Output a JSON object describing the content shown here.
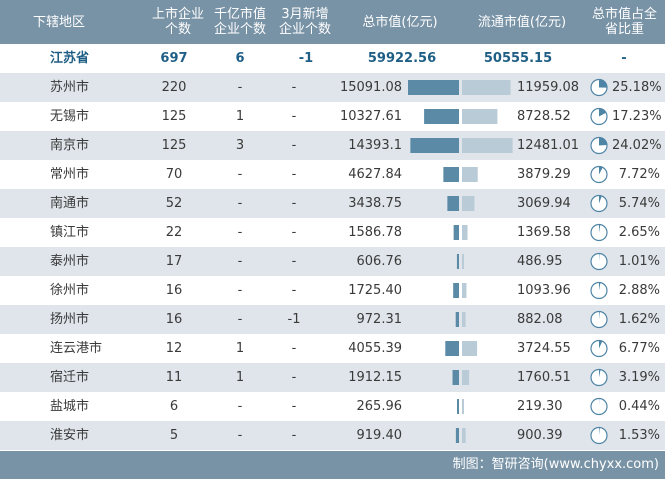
{
  "chart_data": {
    "type": "table",
    "columns": [
      {
        "key": "region",
        "label": "下辖地区"
      },
      {
        "key": "listed",
        "label": "上市企业\n个数"
      },
      {
        "key": "over100b",
        "label": "千亿市值\n企业个数"
      },
      {
        "key": "new_march",
        "label": "3月新增\n企业个数"
      },
      {
        "key": "total_cap",
        "label": "总市值(亿元)"
      },
      {
        "key": "float_cap",
        "label": "流通市值(亿元)"
      },
      {
        "key": "share",
        "label": "总市值占全\n省比重"
      }
    ],
    "summary": {
      "region": "江苏省",
      "listed": "697",
      "over100b": "6",
      "new_march": "-1",
      "total_cap": "59922.56",
      "float_cap": "50555.15",
      "share": "-"
    },
    "rows": [
      {
        "region": "苏州市",
        "listed": "220",
        "over100b": "-",
        "new_march": "-",
        "total_cap": "15091.08",
        "float_cap": "11959.08",
        "share": "25.18%",
        "total_val": 15091.08,
        "float_val": 11959.08,
        "share_val": 25.18
      },
      {
        "region": "无锡市",
        "listed": "125",
        "over100b": "1",
        "new_march": "-",
        "total_cap": "10327.61",
        "float_cap": "8728.52",
        "share": "17.23%",
        "total_val": 10327.61,
        "float_val": 8728.52,
        "share_val": 17.23
      },
      {
        "region": "南京市",
        "listed": "125",
        "over100b": "3",
        "new_march": "-",
        "total_cap": "14393.1",
        "float_cap": "12481.01",
        "share": "24.02%",
        "total_val": 14393.1,
        "float_val": 12481.01,
        "share_val": 24.02
      },
      {
        "region": "常州市",
        "listed": "70",
        "over100b": "-",
        "new_march": "-",
        "total_cap": "4627.84",
        "float_cap": "3879.29",
        "share": "7.72%",
        "total_val": 4627.84,
        "float_val": 3879.29,
        "share_val": 7.72
      },
      {
        "region": "南通市",
        "listed": "52",
        "over100b": "-",
        "new_march": "-",
        "total_cap": "3438.75",
        "float_cap": "3069.94",
        "share": "5.74%",
        "total_val": 3438.75,
        "float_val": 3069.94,
        "share_val": 5.74
      },
      {
        "region": "镇江市",
        "listed": "22",
        "over100b": "-",
        "new_march": "-",
        "total_cap": "1586.78",
        "float_cap": "1369.58",
        "share": "2.65%",
        "total_val": 1586.78,
        "float_val": 1369.58,
        "share_val": 2.65
      },
      {
        "region": "泰州市",
        "listed": "17",
        "over100b": "-",
        "new_march": "-",
        "total_cap": "606.76",
        "float_cap": "486.95",
        "share": "1.01%",
        "total_val": 606.76,
        "float_val": 486.95,
        "share_val": 1.01
      },
      {
        "region": "徐州市",
        "listed": "16",
        "over100b": "-",
        "new_march": "-",
        "total_cap": "1725.40",
        "float_cap": "1093.96",
        "share": "2.88%",
        "total_val": 1725.4,
        "float_val": 1093.96,
        "share_val": 2.88
      },
      {
        "region": "扬州市",
        "listed": "16",
        "over100b": "-",
        "new_march": "-1",
        "total_cap": "972.31",
        "float_cap": "882.08",
        "share": "1.62%",
        "total_val": 972.31,
        "float_val": 882.08,
        "share_val": 1.62
      },
      {
        "region": "连云港市",
        "listed": "12",
        "over100b": "1",
        "new_march": "-",
        "total_cap": "4055.39",
        "float_cap": "3724.55",
        "share": "6.77%",
        "total_val": 4055.39,
        "float_val": 3724.55,
        "share_val": 6.77
      },
      {
        "region": "宿迁市",
        "listed": "11",
        "over100b": "1",
        "new_march": "-",
        "total_cap": "1912.15",
        "float_cap": "1760.51",
        "share": "3.19%",
        "total_val": 1912.15,
        "float_val": 1760.51,
        "share_val": 3.19
      },
      {
        "region": "盐城市",
        "listed": "6",
        "over100b": "-",
        "new_march": "-",
        "total_cap": "265.96",
        "float_cap": "219.30",
        "share": "0.44%",
        "total_val": 265.96,
        "float_val": 219.3,
        "share_val": 0.44
      },
      {
        "region": "淮安市",
        "listed": "5",
        "over100b": "-",
        "new_march": "-",
        "total_cap": "919.40",
        "float_cap": "900.39",
        "share": "1.53%",
        "total_val": 919.4,
        "float_val": 900.39,
        "share_val": 1.53
      }
    ],
    "source": "制图：智研咨询(www.chyxx.com)",
    "colors": {
      "header_bg": "#7892a6",
      "row_alt": "#dfe5ea",
      "total_bar": "#5a8aa6",
      "float_bar": "#b9cbd6",
      "pie_fill": "#4e84a6",
      "pie_stroke": "#4e84a6",
      "summary_text": "#1f5f86"
    }
  }
}
